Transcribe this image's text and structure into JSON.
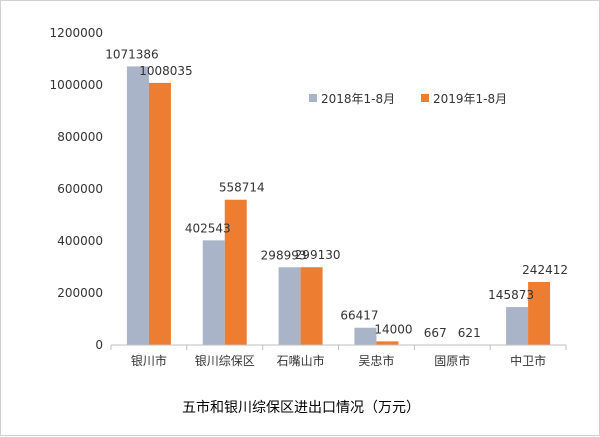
{
  "chart_data": {
    "type": "bar",
    "title": "五市和银川综保区进出口情况（万元）",
    "categories": [
      "银川市",
      "银川综保区",
      "石嘴山市",
      "吴忠市",
      "固原市",
      "中卫市"
    ],
    "series": [
      {
        "name": "2018年1-8月",
        "color": "#a9b4c8",
        "values": [
          1071386,
          402543,
          298993,
          66417,
          667,
          145873
        ]
      },
      {
        "name": "2019年1-8月",
        "color": "#ed7d31",
        "values": [
          1008035,
          558714,
          299130,
          14000,
          621,
          242412
        ]
      }
    ],
    "ylim": [
      0,
      1200000
    ],
    "yticks": [
      "0",
      "200000",
      "400000",
      "600000",
      "800000",
      "1000000",
      "1200000"
    ],
    "grid": false,
    "legend_position": "top-right"
  }
}
